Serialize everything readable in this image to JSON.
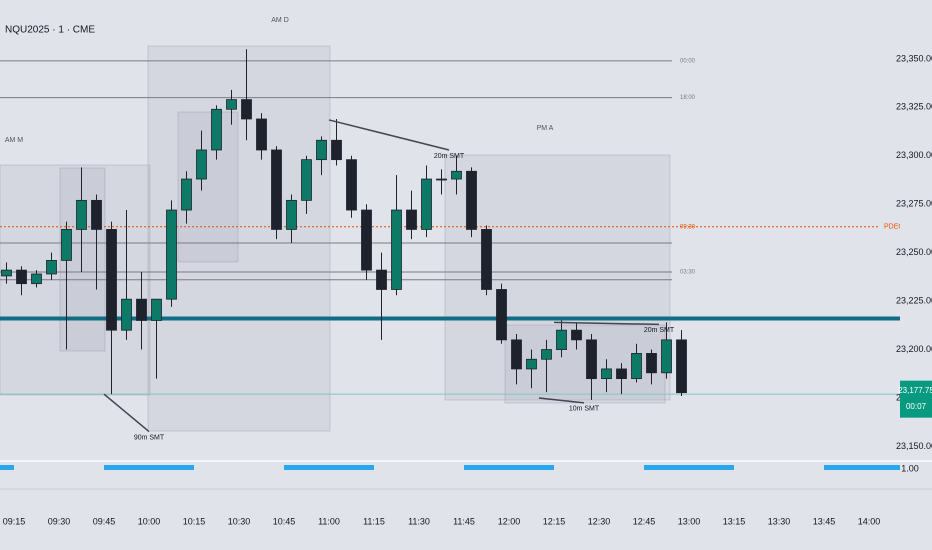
{
  "chart_data": {
    "type": "candlestick",
    "title": "NQU2025 · 1 · CME",
    "x": [
      "09:10",
      "09:15",
      "09:20",
      "09:25",
      "09:30",
      "09:35",
      "09:40",
      "09:45",
      "09:50",
      "09:55",
      "10:00",
      "10:05",
      "10:10",
      "10:15",
      "10:20",
      "10:25",
      "10:30",
      "10:35",
      "10:40",
      "10:45",
      "10:50",
      "10:55",
      "11:00",
      "11:05",
      "11:10",
      "11:15",
      "11:20",
      "11:25",
      "11:30",
      "11:35",
      "11:40",
      "11:45",
      "11:50",
      "11:55",
      "12:00",
      "12:05",
      "12:10",
      "12:15",
      "12:20",
      "12:25",
      "12:30",
      "12:35",
      "12:40",
      "12:45",
      "12:50",
      "12:55"
    ],
    "open": [
      23238,
      23241,
      23234,
      23239,
      23246,
      23262,
      23277,
      23262,
      23210,
      23226,
      23215,
      23226,
      23272,
      23288,
      23303,
      23324,
      23329,
      23319,
      23303,
      23262,
      23277,
      23298,
      23308,
      23298,
      23272,
      23241,
      23231,
      23272,
      23262,
      23288,
      23288,
      23292,
      23262,
      23231,
      23205,
      23190,
      23195,
      23200,
      23210,
      23205,
      23185,
      23190,
      23185,
      23198,
      23188,
      23205
    ],
    "high": [
      23245,
      23243,
      23241,
      23250,
      23266,
      23294,
      23280,
      23266,
      23272,
      23240,
      23226,
      23277,
      23292,
      23313,
      23326,
      23334,
      23355,
      23322,
      23305,
      23280,
      23300,
      23310,
      23319,
      23300,
      23275,
      23250,
      23290,
      23282,
      23295,
      23293,
      23300,
      23294,
      23264,
      23234,
      23208,
      23200,
      23205,
      23215,
      23214,
      23208,
      23195,
      23193,
      23203,
      23200,
      23214,
      23210
    ],
    "low": [
      23234,
      23228,
      23232,
      23236,
      23200,
      23240,
      23231,
      23177,
      23205,
      23200,
      23185,
      23222,
      23265,
      23282,
      23298,
      23316,
      23308,
      23298,
      23257,
      23255,
      23270,
      23290,
      23295,
      23268,
      23236,
      23205,
      23228,
      23257,
      23258,
      23280,
      23280,
      23258,
      23228,
      23203,
      23182,
      23180,
      23178,
      23196,
      23200,
      23174,
      23178,
      23177,
      23183,
      23182,
      23185,
      23176
    ],
    "close": [
      23241,
      23234,
      23239,
      23246,
      23262,
      23277,
      23262,
      23210,
      23226,
      23215,
      23226,
      23272,
      23288,
      23303,
      23324,
      23329,
      23319,
      23303,
      23262,
      23277,
      23298,
      23308,
      23298,
      23272,
      23241,
      23231,
      23272,
      23262,
      23288,
      23288,
      23292,
      23262,
      23231,
      23205,
      23190,
      23195,
      23200,
      23210,
      23205,
      23185,
      23190,
      23185,
      23198,
      23188,
      23205,
      23177.75
    ],
    "up_color": "#0d7a68",
    "down_color": "#1e222d",
    "ylim": [
      23143,
      23380.4
    ],
    "yticks": [
      {
        "value": 23150,
        "label": "23,150.00"
      },
      {
        "value": 23175,
        "label": "23,175.00"
      },
      {
        "value": 23200,
        "label": "23,200.00"
      },
      {
        "value": 23225,
        "label": "23,225.00"
      },
      {
        "value": 23250,
        "label": "23,250.00"
      },
      {
        "value": 23275,
        "label": "23,275.00"
      },
      {
        "value": 23300,
        "label": "23,300.00"
      },
      {
        "value": 23325,
        "label": "23,325.00"
      },
      {
        "value": 23350,
        "label": "23,350.00"
      }
    ],
    "xticks": [
      "09:15",
      "09:30",
      "09:45",
      "10:00",
      "10:15",
      "10:30",
      "10:45",
      "11:00",
      "11:15",
      "11:30",
      "11:45",
      "12:00",
      "12:15",
      "12:30",
      "12:45",
      "13:00",
      "13:15",
      "13:30",
      "13:45",
      "14:00"
    ],
    "levels": [
      {
        "value": 23349,
        "label": "00:00",
        "color": "#787b86"
      },
      {
        "value": 23330,
        "label": "18:00",
        "color": "#787b86"
      },
      {
        "value": 23263.4,
        "label": "09:30",
        "name": "PDEQ",
        "color": "#e65100",
        "dashed": true
      },
      {
        "value": 23255,
        "color": "#787b86"
      },
      {
        "value": 23240,
        "label": "03:30",
        "color": "#787b86"
      },
      {
        "value": 23236,
        "color": "#787b86"
      },
      {
        "value": 23216,
        "color": "#0f6e84",
        "width": 4
      },
      {
        "value": 23177,
        "color": "#7fc8c2"
      }
    ],
    "annotations": [
      {
        "text": "90m SMT",
        "points": [
          [
            "09:45",
            23177
          ],
          [
            "10:00",
            23157.7
          ]
        ]
      },
      {
        "text": "20m SMT",
        "points": [
          [
            "11:00",
            23318.5
          ],
          [
            "11:40",
            23303
          ]
        ]
      },
      {
        "text": "10m SMT",
        "points": [
          [
            "12:10",
            23175
          ],
          [
            "12:25",
            23172.5
          ]
        ]
      },
      {
        "text": "20m SMT",
        "points": [
          [
            "12:15",
            23214
          ],
          [
            "12:50",
            23213
          ]
        ]
      }
    ],
    "sessions": [
      {
        "label": "AM M"
      },
      {
        "label": "AM D"
      },
      {
        "label": "PM A"
      }
    ],
    "last_price": 23177.75,
    "last_price_label": "23,177.75",
    "countdown": "00:07",
    "indicator": {
      "color": "#2aa8ee",
      "yticks": [
        {
          "value": 1,
          "label": "1.00"
        }
      ],
      "segments": [
        [
          "08:45",
          "09:15"
        ],
        [
          "09:45",
          "10:15"
        ],
        [
          "10:45",
          "11:15"
        ],
        [
          "11:45",
          "12:15"
        ],
        [
          "12:45",
          "13:15"
        ],
        [
          "13:45",
          "14:15"
        ]
      ]
    }
  }
}
